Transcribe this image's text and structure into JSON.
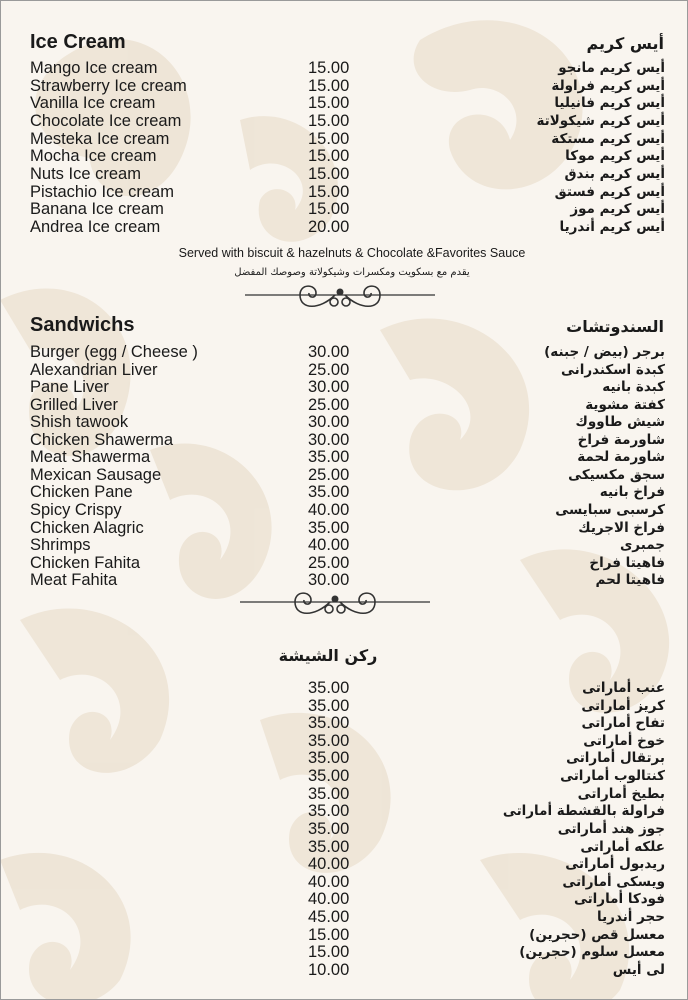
{
  "colors": {
    "background": "#f9f5ef",
    "pattern": "#e8dccb",
    "text": "#1a1a1a"
  },
  "ice_cream": {
    "title_en": "Ice Cream",
    "title_ar": "أيس كريم",
    "items": [
      {
        "en": "Mango Ice cream",
        "price": "15.00",
        "ar": "أيس كريم مانجو"
      },
      {
        "en": "Strawberry Ice cream",
        "price": "15.00",
        "ar": "أيس كريم فراولة"
      },
      {
        "en": "Vanilla Ice cream",
        "price": "15.00",
        "ar": "أيس كريم فانيليا"
      },
      {
        "en": "Chocolate Ice cream",
        "price": "15.00",
        "ar": "أيس كريم شيكولاتة"
      },
      {
        "en": "Mesteka Ice cream",
        "price": "15.00",
        "ar": "أيس كريم مستكة"
      },
      {
        "en": "Mocha Ice cream",
        "price": "15.00",
        "ar": "أيس كريم موكا"
      },
      {
        "en": "Nuts Ice cream",
        "price": "15.00",
        "ar": "أيس كريم بندق"
      },
      {
        "en": "Pistachio Ice cream",
        "price": "15.00",
        "ar": "أيس كريم فستق"
      },
      {
        "en": "Banana Ice cream",
        "price": "15.00",
        "ar": "أيس كريم موز"
      },
      {
        "en": "Andrea Ice cream",
        "price": "20.00",
        "ar": "أيس كريم أندريا"
      }
    ],
    "note_en": "Served with biscuit & hazelnuts & Chocolate &Favorites Sauce",
    "note_ar": "يقدم مع بسكويت ومكسرات وشيكولاتة وصوصك المفضل"
  },
  "sandwiches": {
    "title_en": "Sandwichs",
    "title_ar": "السندوتشات",
    "items": [
      {
        "en": "Burger (egg / Cheese )",
        "price": "30.00",
        "ar": "برجر (بيض / جبنه)"
      },
      {
        "en": "Alexandrian Liver",
        "price": "25.00",
        "ar": "كبدة اسكندرانى"
      },
      {
        "en": "Pane Liver",
        "price": "30.00",
        "ar": "كبدة بانيه"
      },
      {
        "en": "Grilled Liver",
        "price": "25.00",
        "ar": "كفتة مشوية"
      },
      {
        "en": "Shish tawook",
        "price": "30.00",
        "ar": "شيش طاووك"
      },
      {
        "en": "Chicken Shawerma",
        "price": "30.00",
        "ar": "شاورمة فراخ"
      },
      {
        "en": "Meat Shawerma",
        "price": "35.00",
        "ar": "شاورمة لحمة"
      },
      {
        "en": "Mexican Sausage",
        "price": "25.00",
        "ar": "سجق مكسيكى"
      },
      {
        "en": "Chicken Pane",
        "price": "35.00",
        "ar": "فراخ بانيه"
      },
      {
        "en": "Spicy Crispy",
        "price": "40.00",
        "ar": "كرسبى سبايسى"
      },
      {
        "en": "Chicken Alagric",
        "price": "35.00",
        "ar": "فراخ الاجريك"
      },
      {
        "en": "Shrimps",
        "price": "40.00",
        "ar": "جمبرى"
      },
      {
        "en": "Chicken Fahita",
        "price": "25.00",
        "ar": "فاهيتا فراخ"
      },
      {
        "en": "Meat Fahita",
        "price": "30.00",
        "ar": "فاهيتا لحم"
      }
    ]
  },
  "shisha": {
    "title_ar": "ركن الشيشة",
    "items": [
      {
        "price": "35.00",
        "ar": "عنب أماراتى"
      },
      {
        "price": "35.00",
        "ar": "كريز أماراتى"
      },
      {
        "price": "35.00",
        "ar": "تفاح أماراتى"
      },
      {
        "price": "35.00",
        "ar": "خوخ أماراتى"
      },
      {
        "price": "35.00",
        "ar": "برتقال أماراتى"
      },
      {
        "price": "35.00",
        "ar": "كنتالوب أماراتى"
      },
      {
        "price": "35.00",
        "ar": "بطيخ أماراتى"
      },
      {
        "price": "35.00",
        "ar": "فراولة بالقشطة أماراتى"
      },
      {
        "price": "35.00",
        "ar": "جوز هند أماراتى"
      },
      {
        "price": "35.00",
        "ar": "علكه أماراتى"
      },
      {
        "price": "40.00",
        "ar": "ريدبول أماراتى"
      },
      {
        "price": "40.00",
        "ar": "ويسكى أماراتى"
      },
      {
        "price": "40.00",
        "ar": "فودكا أماراتى"
      },
      {
        "price": "45.00",
        "ar": "حجر أندريا"
      },
      {
        "price": "15.00",
        "ar": "معسل قص (حجرين)"
      },
      {
        "price": "15.00",
        "ar": "معسل سلوم (حجرين)"
      },
      {
        "price": "10.00",
        "ar": "لى أيس"
      }
    ]
  }
}
